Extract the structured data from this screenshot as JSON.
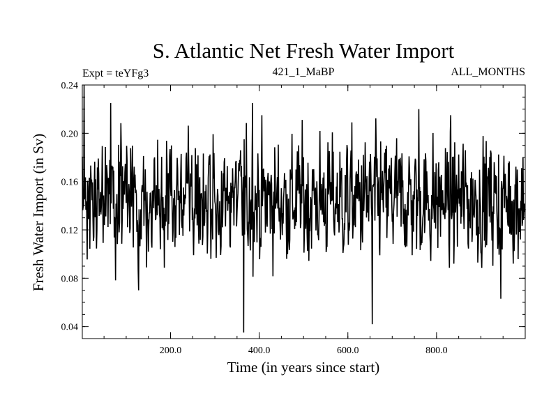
{
  "chart_data": {
    "type": "line",
    "title": "S. Atlantic Net Fresh Water Import",
    "experiment_label": "Expt = teYFg3",
    "run_label": "421_1_MaBP",
    "months_label": "ALL_MONTHS",
    "xlabel": "Time (in years since start)",
    "ylabel": "Fresh Water Import (in Sv)",
    "xlim": [
      1,
      1000
    ],
    "ylim": [
      0.03,
      0.24
    ],
    "x_ticks": [
      200,
      400,
      600,
      800
    ],
    "x_tick_labels": [
      "200.0",
      "400.0",
      "600.0",
      "800.0"
    ],
    "y_ticks": [
      0.04,
      0.08,
      0.12,
      0.16,
      0.2,
      0.24
    ],
    "y_tick_labels": [
      "0.04",
      "0.08",
      "0.12",
      "0.16",
      "0.20",
      "0.24"
    ],
    "x_minor_step": 50,
    "y_minor_step": 0.01,
    "grid": false,
    "line_color": "#000000",
    "series": [
      {
        "name": "Net fresh water import",
        "sampling": "annual, years 1-1000",
        "mean": 0.145,
        "approx_std": 0.025,
        "notable_points": [
          {
            "x": 5,
            "y": 0.24
          },
          {
            "x": 65,
            "y": 0.225
          },
          {
            "x": 365,
            "y": 0.035
          },
          {
            "x": 385,
            "y": 0.225
          },
          {
            "x": 655,
            "y": 0.042
          },
          {
            "x": 760,
            "y": 0.22
          },
          {
            "x": 945,
            "y": 0.063
          }
        ]
      }
    ]
  }
}
